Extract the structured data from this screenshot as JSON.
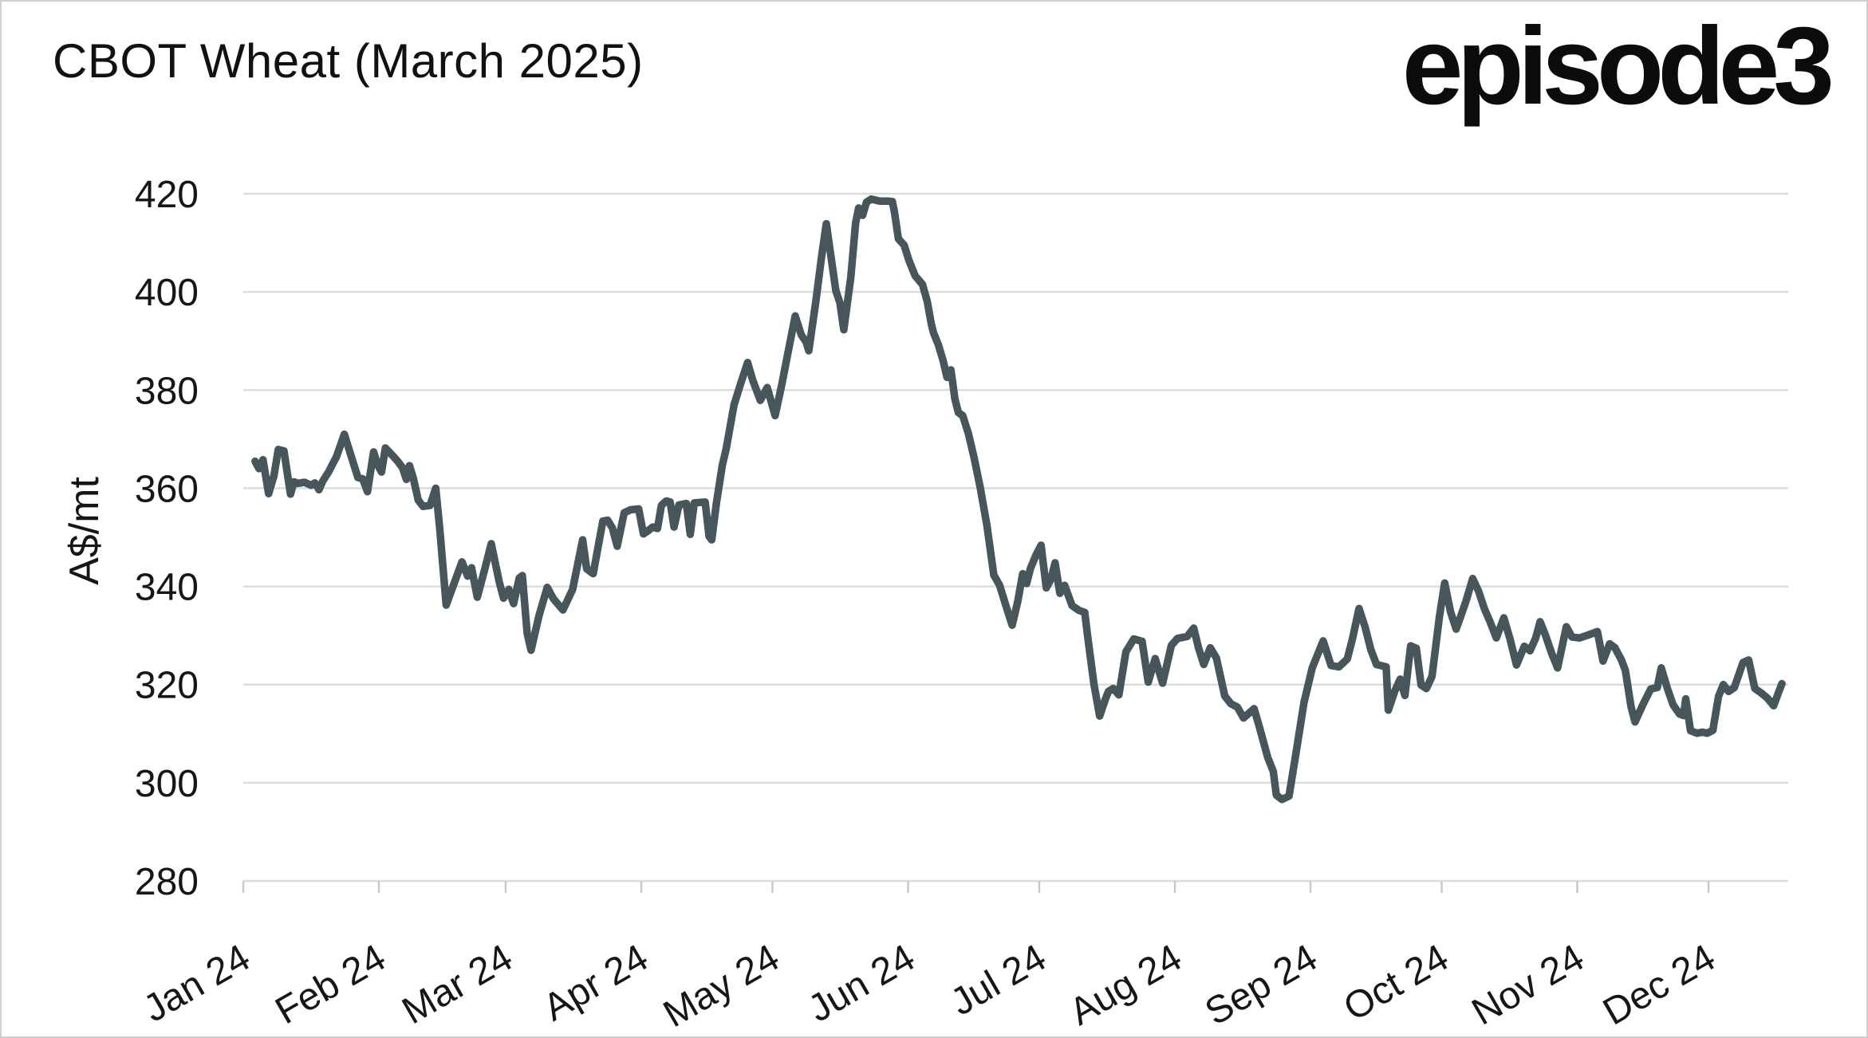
{
  "header": {
    "title": "CBOT Wheat (March 2025)",
    "logo": "episode3"
  },
  "colors": {
    "background": "#ffffff",
    "frame_border": "#cfcfcf",
    "gridline": "#dcdcdc",
    "tick": "#c9c9c9",
    "text": "#161616",
    "line": "#46565a"
  },
  "chart_data": {
    "type": "line",
    "title": "CBOT Wheat (March 2025)",
    "xlabel": "",
    "ylabel": "A$/mt",
    "ylim": [
      280,
      420
    ],
    "y_ticks": [
      280,
      300,
      320,
      340,
      360,
      380,
      400,
      420
    ],
    "x_tick_labels": [
      "Jan 24",
      "Feb 24",
      "Mar 24",
      "Apr 24",
      "May 24",
      "Jun 24",
      "Jul 24",
      "Aug 24",
      "Sep 24",
      "Oct 24",
      "Nov 24",
      "Dec 24"
    ],
    "x_tick_days": [
      0,
      31,
      60,
      91,
      121,
      152,
      182,
      213,
      244,
      274,
      305,
      335
    ],
    "grid": "horizontal",
    "legend": "none",
    "line_color": "#46565a",
    "series": [
      {
        "name": "CBOT Wheat March 2025 contract (A$/mt)",
        "points": [
          [
            2.7,
            365.5
          ],
          [
            3.6,
            364.0
          ],
          [
            4.5,
            365.8
          ],
          [
            5.8,
            358.9
          ],
          [
            7.0,
            362.5
          ],
          [
            8.0,
            367.9
          ],
          [
            9.3,
            367.6
          ],
          [
            10.8,
            358.8
          ],
          [
            11.6,
            361.3
          ],
          [
            12.5,
            361.0
          ],
          [
            14.0,
            361.2
          ],
          [
            15.5,
            360.6
          ],
          [
            16.4,
            361.1
          ],
          [
            17.3,
            359.7
          ],
          [
            18.2,
            361.5
          ],
          [
            19.5,
            363.3
          ],
          [
            20.4,
            364.9
          ],
          [
            21.3,
            366.4
          ],
          [
            23.1,
            371.0
          ],
          [
            24.4,
            367.3
          ],
          [
            26.2,
            362.2
          ],
          [
            27.3,
            361.9
          ],
          [
            28.4,
            359.3
          ],
          [
            29.8,
            367.4
          ],
          [
            30.7,
            364.8
          ],
          [
            31.6,
            363.3
          ],
          [
            32.5,
            368.2
          ],
          [
            34.0,
            366.8
          ],
          [
            35.3,
            365.5
          ],
          [
            36.4,
            364.2
          ],
          [
            37.3,
            361.8
          ],
          [
            38.0,
            364.6
          ],
          [
            38.9,
            362.0
          ],
          [
            40.0,
            357.6
          ],
          [
            41.1,
            356.3
          ],
          [
            42.7,
            356.5
          ],
          [
            44.0,
            360.0
          ],
          [
            44.9,
            352.0
          ],
          [
            46.4,
            336.2
          ],
          [
            48.2,
            340.6
          ],
          [
            50.0,
            345.0
          ],
          [
            51.3,
            342.1
          ],
          [
            52.2,
            343.8
          ],
          [
            53.5,
            337.8
          ],
          [
            55.3,
            343.8
          ],
          [
            56.7,
            348.7
          ],
          [
            58.5,
            341.0
          ],
          [
            59.5,
            337.6
          ],
          [
            60.7,
            339.4
          ],
          [
            61.8,
            336.5
          ],
          [
            63.1,
            341.7
          ],
          [
            63.8,
            342.2
          ],
          [
            64.9,
            330.5
          ],
          [
            65.8,
            327.0
          ],
          [
            67.6,
            334.0
          ],
          [
            69.5,
            339.8
          ],
          [
            70.9,
            337.5
          ],
          [
            73.1,
            335.2
          ],
          [
            75.3,
            339.4
          ],
          [
            77.6,
            349.5
          ],
          [
            78.5,
            343.6
          ],
          [
            80.0,
            342.6
          ],
          [
            82.2,
            353.3
          ],
          [
            83.3,
            353.5
          ],
          [
            84.4,
            351.9
          ],
          [
            85.5,
            348.2
          ],
          [
            87.1,
            355.0
          ],
          [
            88.5,
            355.6
          ],
          [
            90.4,
            355.8
          ],
          [
            91.5,
            350.7
          ],
          [
            92.5,
            351.3
          ],
          [
            93.6,
            352.1
          ],
          [
            94.7,
            351.8
          ],
          [
            95.6,
            356.5
          ],
          [
            96.7,
            357.4
          ],
          [
            97.6,
            357.2
          ],
          [
            98.5,
            352.1
          ],
          [
            99.6,
            356.6
          ],
          [
            101.3,
            356.9
          ],
          [
            102.2,
            350.6
          ],
          [
            103.1,
            357.0
          ],
          [
            105.6,
            357.2
          ],
          [
            106.5,
            350.2
          ],
          [
            107.1,
            349.5
          ],
          [
            108.2,
            357.1
          ],
          [
            109.5,
            364.6
          ],
          [
            110.4,
            368.0
          ],
          [
            112.2,
            377.0
          ],
          [
            113.8,
            381.5
          ],
          [
            115.3,
            385.6
          ],
          [
            116.5,
            382.0
          ],
          [
            118.2,
            377.9
          ],
          [
            119.8,
            380.5
          ],
          [
            121.6,
            374.8
          ],
          [
            123.1,
            381.0
          ],
          [
            124.4,
            387.0
          ],
          [
            126.2,
            395.1
          ],
          [
            127.6,
            391.2
          ],
          [
            128.7,
            389.8
          ],
          [
            129.3,
            388.0
          ],
          [
            130.9,
            398.0
          ],
          [
            132.2,
            407.0
          ],
          [
            133.3,
            413.9
          ],
          [
            134.4,
            407.0
          ],
          [
            135.5,
            400.2
          ],
          [
            136.4,
            397.8
          ],
          [
            137.3,
            392.3
          ],
          [
            138.9,
            403.0
          ],
          [
            140.0,
            414.0
          ],
          [
            140.7,
            417.1
          ],
          [
            141.6,
            415.6
          ],
          [
            142.5,
            418.3
          ],
          [
            143.6,
            418.9
          ],
          [
            145.5,
            418.5
          ],
          [
            147.3,
            418.5
          ],
          [
            148.4,
            418.4
          ],
          [
            148.9,
            416.2
          ],
          [
            149.8,
            410.8
          ],
          [
            151.1,
            409.5
          ],
          [
            152.2,
            406.4
          ],
          [
            153.6,
            403.3
          ],
          [
            155.3,
            401.5
          ],
          [
            156.4,
            398.0
          ],
          [
            157.3,
            393.5
          ],
          [
            157.8,
            391.7
          ],
          [
            158.9,
            389.3
          ],
          [
            160.0,
            386.0
          ],
          [
            160.9,
            382.6
          ],
          [
            161.8,
            384.1
          ],
          [
            162.7,
            378.2
          ],
          [
            163.5,
            375.4
          ],
          [
            164.5,
            374.8
          ],
          [
            165.8,
            371.1
          ],
          [
            167.1,
            366.2
          ],
          [
            168.5,
            360.1
          ],
          [
            170.0,
            352.6
          ],
          [
            171.6,
            342.3
          ],
          [
            172.9,
            340.3
          ],
          [
            174.4,
            336.0
          ],
          [
            175.8,
            332.1
          ],
          [
            177.1,
            337.0
          ],
          [
            178.2,
            342.6
          ],
          [
            179.1,
            340.6
          ],
          [
            180.0,
            343.7
          ],
          [
            181.3,
            346.5
          ],
          [
            182.4,
            348.4
          ],
          [
            183.6,
            339.7
          ],
          [
            184.7,
            341.5
          ],
          [
            185.6,
            344.8
          ],
          [
            186.7,
            338.6
          ],
          [
            187.8,
            340.2
          ],
          [
            189.5,
            336.1
          ],
          [
            191.1,
            335.1
          ],
          [
            192.4,
            334.7
          ],
          [
            193.1,
            329.5
          ],
          [
            194.5,
            320.0
          ],
          [
            195.8,
            313.6
          ],
          [
            197.1,
            317.0
          ],
          [
            197.8,
            318.6
          ],
          [
            198.9,
            319.2
          ],
          [
            200.2,
            317.9
          ],
          [
            201.8,
            326.7
          ],
          [
            203.6,
            329.3
          ],
          [
            205.5,
            328.8
          ],
          [
            206.9,
            320.5
          ],
          [
            208.5,
            325.3
          ],
          [
            210.2,
            320.3
          ],
          [
            212.2,
            328.0
          ],
          [
            213.6,
            329.4
          ],
          [
            215.8,
            329.8
          ],
          [
            217.3,
            331.5
          ],
          [
            218.4,
            327.5
          ],
          [
            219.6,
            324.1
          ],
          [
            221.1,
            327.5
          ],
          [
            222.5,
            325.4
          ],
          [
            224.4,
            317.7
          ],
          [
            225.8,
            316.1
          ],
          [
            227.3,
            315.4
          ],
          [
            228.7,
            313.2
          ],
          [
            231.1,
            315.1
          ],
          [
            232.4,
            311.1
          ],
          [
            234.2,
            305.2
          ],
          [
            235.5,
            302.3
          ],
          [
            236.2,
            297.5
          ],
          [
            237.5,
            296.6
          ],
          [
            239.1,
            297.3
          ],
          [
            240.9,
            307.2
          ],
          [
            242.5,
            316.3
          ],
          [
            244.4,
            323.4
          ],
          [
            246.9,
            328.9
          ],
          [
            248.7,
            323.9
          ],
          [
            250.5,
            323.6
          ],
          [
            252.4,
            325.2
          ],
          [
            253.6,
            329.3
          ],
          [
            255.1,
            335.5
          ],
          [
            256.5,
            331.7
          ],
          [
            257.8,
            327.1
          ],
          [
            259.1,
            324.1
          ],
          [
            261.3,
            323.6
          ],
          [
            261.8,
            314.8
          ],
          [
            263.3,
            318.7
          ],
          [
            264.5,
            321.1
          ],
          [
            265.6,
            317.8
          ],
          [
            266.9,
            327.9
          ],
          [
            268.2,
            327.4
          ],
          [
            269.3,
            319.9
          ],
          [
            270.5,
            319.2
          ],
          [
            271.8,
            321.7
          ],
          [
            273.5,
            334.0
          ],
          [
            274.7,
            340.7
          ],
          [
            276.0,
            334.9
          ],
          [
            277.3,
            331.3
          ],
          [
            278.2,
            333.5
          ],
          [
            279.6,
            337.1
          ],
          [
            281.1,
            341.6
          ],
          [
            282.4,
            339.1
          ],
          [
            283.8,
            335.4
          ],
          [
            285.1,
            332.7
          ],
          [
            286.5,
            329.5
          ],
          [
            288.2,
            333.6
          ],
          [
            289.6,
            329.4
          ],
          [
            291.1,
            324.0
          ],
          [
            292.9,
            327.8
          ],
          [
            294.2,
            326.9
          ],
          [
            295.5,
            329.5
          ],
          [
            296.5,
            332.8
          ],
          [
            297.8,
            329.9
          ],
          [
            299.1,
            326.5
          ],
          [
            300.5,
            323.4
          ],
          [
            302.5,
            331.8
          ],
          [
            303.8,
            329.7
          ],
          [
            305.5,
            329.5
          ],
          [
            307.5,
            330.1
          ],
          [
            309.6,
            330.8
          ],
          [
            310.9,
            324.8
          ],
          [
            312.4,
            328.3
          ],
          [
            313.6,
            327.5
          ],
          [
            315.1,
            325.0
          ],
          [
            316.0,
            322.9
          ],
          [
            317.3,
            315.5
          ],
          [
            318.2,
            312.4
          ],
          [
            320.0,
            315.9
          ],
          [
            321.8,
            319.1
          ],
          [
            323.3,
            319.4
          ],
          [
            324.2,
            323.4
          ],
          [
            325.6,
            319.2
          ],
          [
            326.9,
            315.9
          ],
          [
            328.4,
            314.0
          ],
          [
            329.3,
            313.7
          ],
          [
            329.8,
            317.1
          ],
          [
            330.9,
            310.6
          ],
          [
            332.4,
            310.1
          ],
          [
            333.6,
            310.3
          ],
          [
            334.7,
            310.1
          ],
          [
            336.0,
            310.7
          ],
          [
            337.3,
            317.6
          ],
          [
            338.4,
            320.0
          ],
          [
            339.6,
            318.6
          ],
          [
            340.9,
            319.4
          ],
          [
            342.9,
            324.5
          ],
          [
            344.2,
            325.0
          ],
          [
            345.6,
            319.2
          ],
          [
            346.9,
            318.4
          ],
          [
            348.4,
            317.3
          ],
          [
            349.9,
            315.7
          ],
          [
            351.1,
            318.6
          ],
          [
            351.8,
            320.2
          ]
        ]
      }
    ]
  }
}
